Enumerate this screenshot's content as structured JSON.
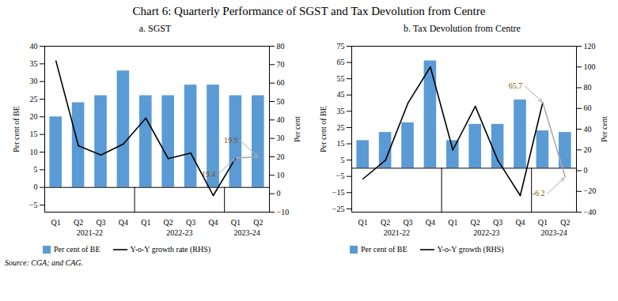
{
  "title": "Chart 6: Quarterly Performance of SGST and Tax Devolution from Centre",
  "caption": "Source: CGA; and CAG.",
  "chart_data": [
    {
      "type": "bar",
      "subtitle": "a. SGST",
      "categories": [
        "Q1",
        "Q2",
        "Q3",
        "Q4",
        "Q1",
        "Q2",
        "Q3",
        "Q4",
        "Q1",
        "Q2"
      ],
      "group_labels": [
        "2021-22",
        "2021-22",
        "2021-22",
        "2021-22",
        "2022-23",
        "2022-23",
        "2022-23",
        "2022-23",
        "2023-24",
        "2023-24"
      ],
      "series": [
        {
          "name": "Per cent of BE",
          "type": "bar",
          "color": "#5B9BD5",
          "values": [
            20,
            24,
            26,
            33,
            26,
            26,
            29,
            29,
            26,
            26
          ]
        },
        {
          "name": "Y-o-Y growth rate (RHS)",
          "type": "line",
          "axis": "y2",
          "colors": [
            "#000000",
            "#000000",
            "#000000",
            "#000000",
            "#000000",
            "#000000",
            "#000000",
            "#000000",
            "#000000",
            "#AAAAAA"
          ],
          "values": [
            72,
            26,
            21,
            27,
            41,
            19,
            22,
            -1,
            19.4,
            19.9
          ]
        }
      ],
      "ylabel": "Per cent of BE",
      "y2label": "Per cent",
      "ylim": [
        -7,
        40
      ],
      "yticks": [
        -5,
        0,
        5,
        10,
        15,
        20,
        25,
        30,
        35,
        40
      ],
      "y2lim": [
        -10,
        80
      ],
      "y2ticks": [
        -10,
        0,
        10,
        20,
        30,
        40,
        50,
        60,
        70,
        80
      ],
      "annotations": [
        {
          "text": "19.9",
          "x": 9,
          "y": 19.9
        },
        {
          "text": "19.4",
          "x": 8,
          "y": 19.4
        }
      ]
    },
    {
      "type": "bar",
      "subtitle": "b. Tax Devolution from Centre",
      "categories": [
        "Q1",
        "Q2",
        "Q3",
        "Q4",
        "Q1",
        "Q2",
        "Q3",
        "Q4",
        "Q1",
        "Q2"
      ],
      "group_labels": [
        "2021-22",
        "2021-22",
        "2021-22",
        "2021-22",
        "2022-23",
        "2022-23",
        "2022-23",
        "2022-23",
        "2023-24",
        "2023-24"
      ],
      "series": [
        {
          "name": "Per cent of BE",
          "type": "bar",
          "color": "#5B9BD5",
          "values": [
            17,
            22,
            28,
            66,
            17,
            27,
            27,
            42,
            23,
            22
          ]
        },
        {
          "name": "Y-o-Y growth (RHS)",
          "type": "line",
          "axis": "y2",
          "colors": [
            "#000000",
            "#000000",
            "#000000",
            "#000000",
            "#000000",
            "#000000",
            "#000000",
            "#000000",
            "#000000",
            "#AAAAAA"
          ],
          "values": [
            -8,
            10,
            65,
            100,
            20,
            62,
            10,
            -24,
            65.7,
            -6.2
          ]
        }
      ],
      "ylabel": "Per cent of BE",
      "y2label": "Per cent",
      "ylim": [
        -27,
        75
      ],
      "yticks": [
        -25,
        -15,
        -5,
        5,
        15,
        25,
        35,
        45,
        55,
        65,
        75
      ],
      "y2lim": [
        -40,
        120
      ],
      "y2ticks": [
        -40,
        -20,
        0,
        20,
        40,
        60,
        80,
        100,
        120
      ],
      "annotations": [
        {
          "text": "65.7",
          "x": 8,
          "y": 65.7
        },
        {
          "text": "-6.2",
          "x": 9,
          "y": -6.2
        }
      ]
    }
  ]
}
